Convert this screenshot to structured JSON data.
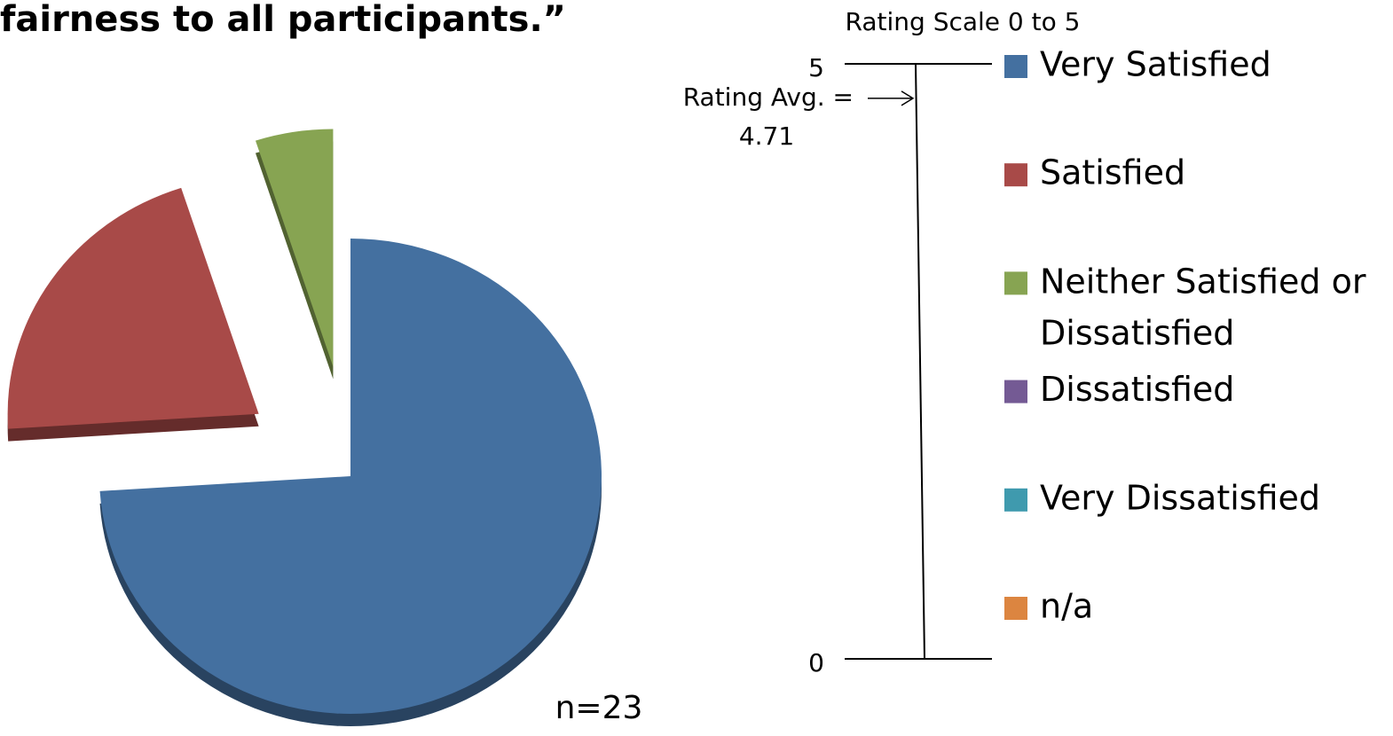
{
  "chart_data": {
    "type": "pie",
    "title": "fairness to all participants.”",
    "categories": [
      "Very Satisfied",
      "Satisfied",
      "Neither Satisfied or Dissatisfied",
      "Dissatisfied",
      "Very Dissatisfied",
      "n/a"
    ],
    "values": [
      74,
      21,
      5,
      0,
      0,
      0
    ],
    "colors": [
      "#4470a0",
      "#a84a48",
      "#87a452",
      "#745a94",
      "#3f9aae",
      "#dc8540"
    ],
    "note": "n=23",
    "scale": {
      "title": "Rating Scale 0 to 5",
      "ylim": [
        0,
        5
      ],
      "yticks": [
        0,
        5
      ],
      "average_label": "Rating Avg. =",
      "average": 4.71
    }
  }
}
